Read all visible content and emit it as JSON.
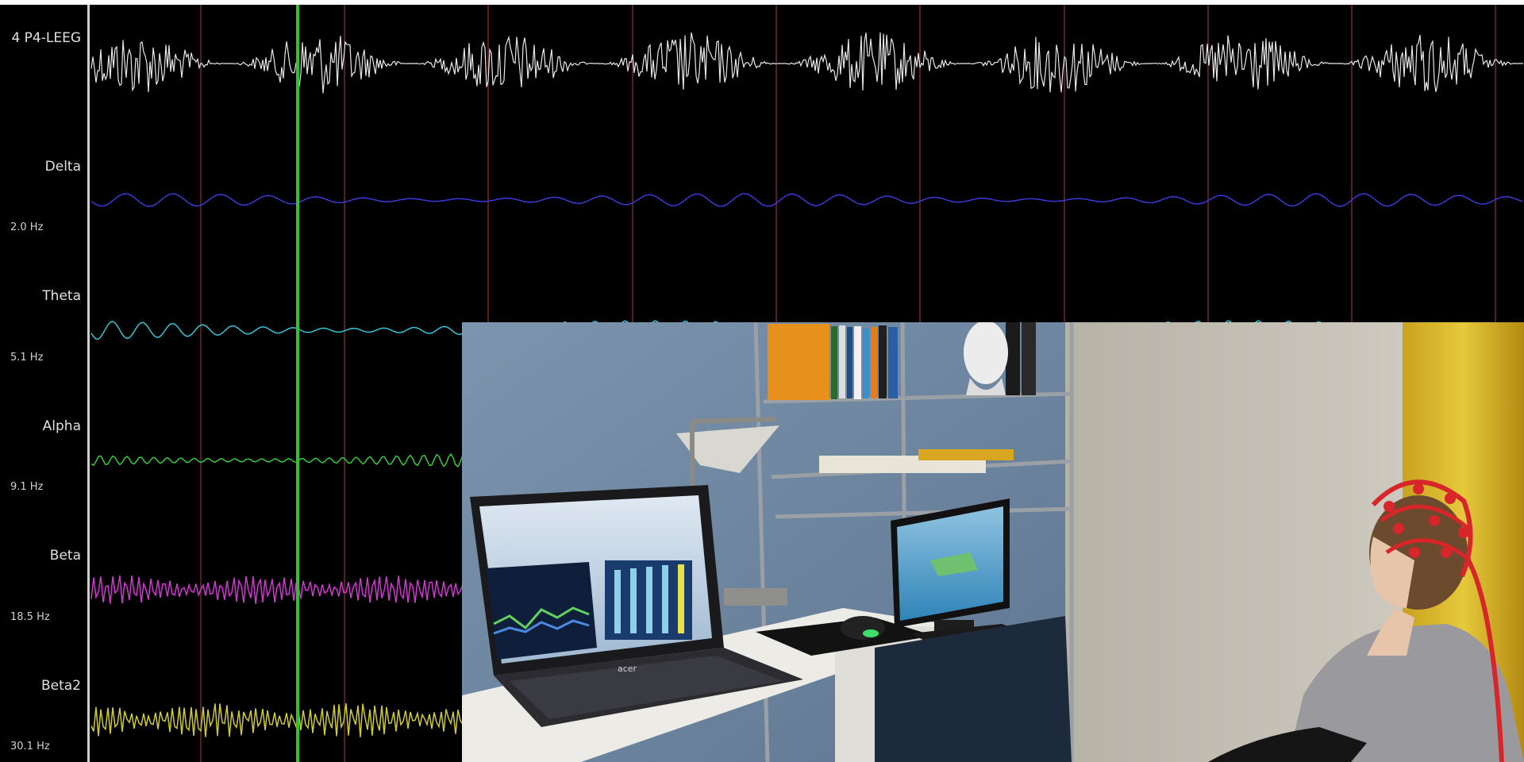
{
  "channels": [
    {
      "id": "raw",
      "label": "4 P4-LEEG",
      "freq": "",
      "color": "#e8e8e8"
    },
    {
      "id": "delta",
      "label": "Delta",
      "freq": "2.0 Hz",
      "color": "#3a3ad8"
    },
    {
      "id": "theta",
      "label": "Theta",
      "freq": "5.1 Hz",
      "color": "#35c4d6"
    },
    {
      "id": "alpha",
      "label": "Alpha",
      "freq": "9.1 Hz",
      "color": "#34c93a"
    },
    {
      "id": "beta",
      "label": "Beta",
      "freq": "18.5 Hz",
      "color": "#d235d2"
    },
    {
      "id": "beta2",
      "label": "Beta2",
      "freq": "30.1 Hz",
      "color": "#cfcc2a"
    }
  ],
  "colors": {
    "background": "#000000",
    "grid_line": "#b03a3a",
    "cursor": "#2fc12f",
    "divider": "#cfcfcf"
  },
  "photo": {
    "description_icon": "experiment-photo",
    "laptop_brand": "acer"
  }
}
